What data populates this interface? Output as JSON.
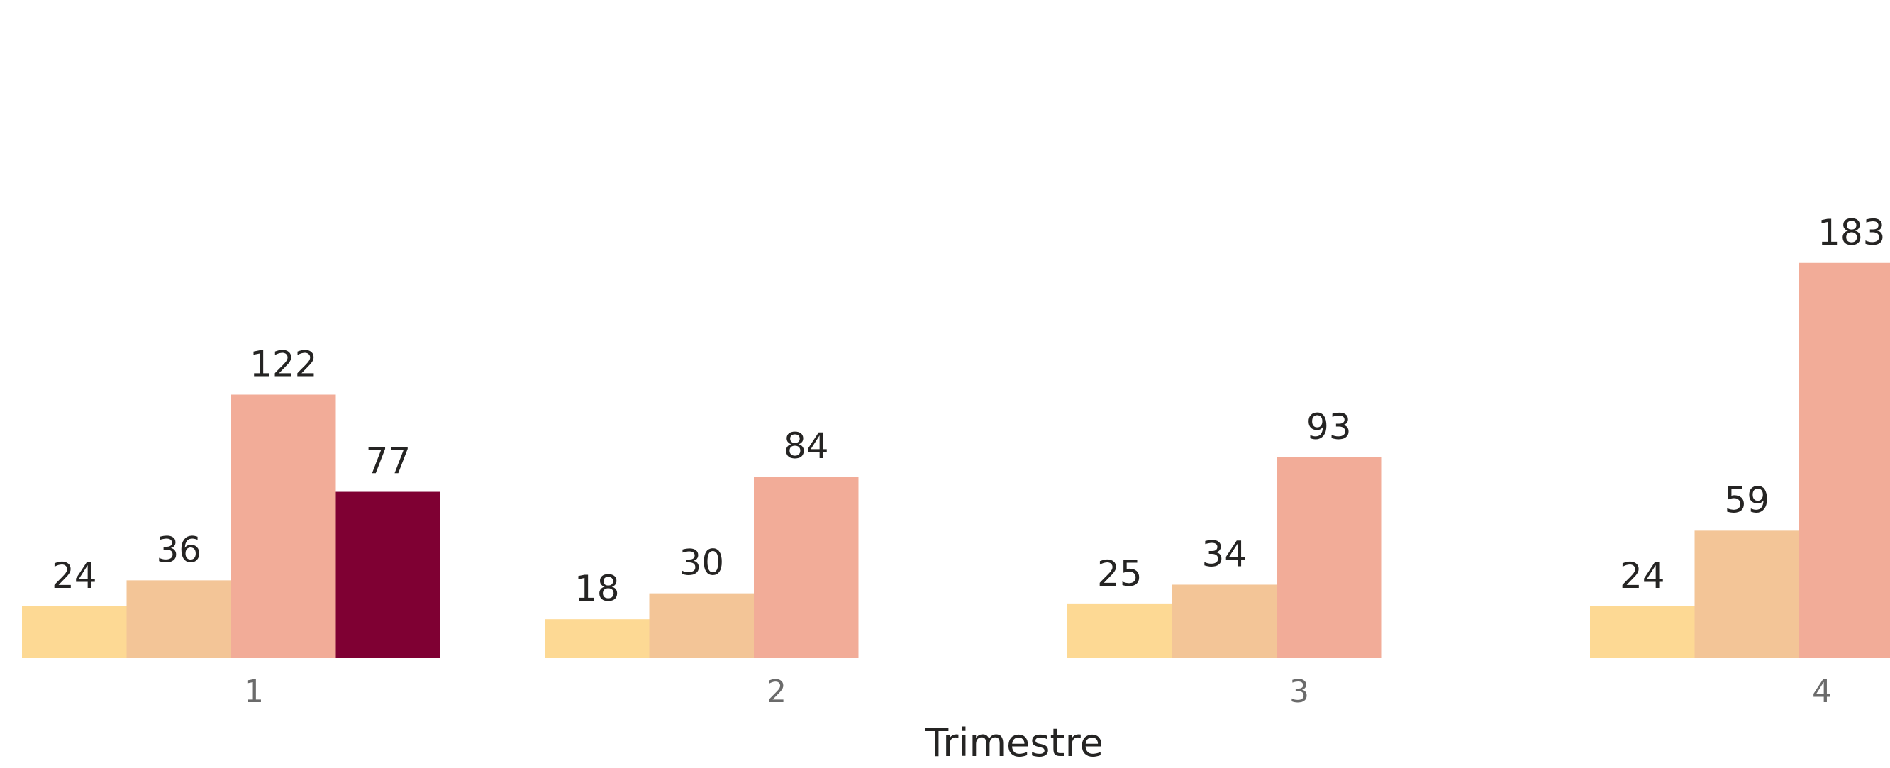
{
  "chart_data": {
    "type": "bar",
    "xlabel": "Trimestre",
    "ylabel": "",
    "categories": [
      "1",
      "2",
      "3",
      "4"
    ],
    "series": [
      {
        "color": "#FDD994",
        "values": [
          24,
          18,
          25,
          24
        ]
      },
      {
        "color": "#F3C597",
        "values": [
          36,
          30,
          34,
          59
        ]
      },
      {
        "color": "#F2AC98",
        "values": [
          122,
          84,
          93,
          183
        ]
      },
      {
        "color": "#7F0033",
        "values": [
          77,
          null,
          null,
          null
        ]
      }
    ],
    "ylim": [
      0,
      183
    ],
    "grid": false,
    "legend": "none"
  }
}
